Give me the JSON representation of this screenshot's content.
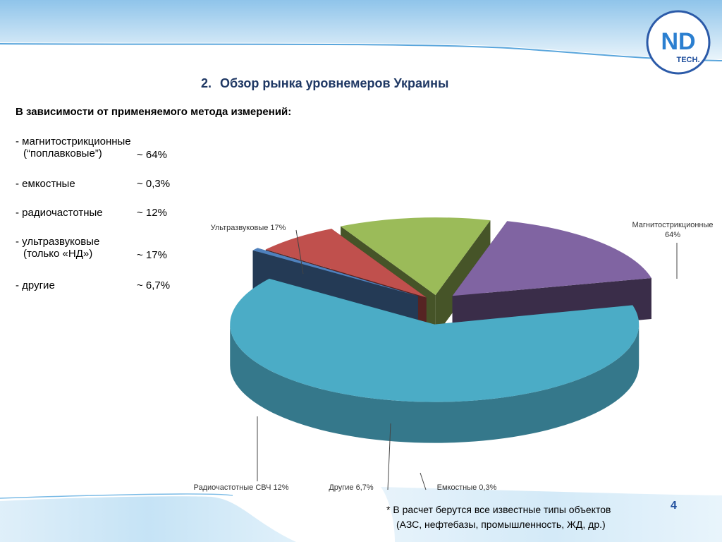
{
  "slide": {
    "title_number": "2.",
    "title": "Обзор рынка уровнемеров Украины",
    "subtitle": "В зависимости от применяемого метода измерений:",
    "page_number": "4",
    "footnote_line1": "* В расчет берутся все известные типы объектов",
    "footnote_line2": "(АЗС, нефтебазы, промышленность, ЖД, др.)"
  },
  "logo": {
    "main": "ND",
    "sub": "TECH."
  },
  "bullets": [
    {
      "label": "- магнитострикционные",
      "label2": "(“поплавковые”)",
      "value": "~ 64%"
    },
    {
      "label": "- емкостные",
      "label2": "",
      "value": "~ 0,3%"
    },
    {
      "label": "- радиочастотные",
      "label2": "",
      "value": "~ 12%"
    },
    {
      "label": "- ультразвуковые",
      "label2": "(только «НД»)",
      "value": "~ 17%"
    },
    {
      "label": "- другие",
      "label2": "",
      "value": "~ 6,7%"
    }
  ],
  "chart_data": {
    "type": "pie",
    "title": "",
    "style": "3d-exploded",
    "slices": [
      {
        "label": "Магнитострикционные",
        "value_label": "64%",
        "value": 64,
        "color": "#4bacc6"
      },
      {
        "label": "Емкостные",
        "value_label": "0,3%",
        "value": 0.3,
        "color": "#4f81bd"
      },
      {
        "label": "Другие",
        "value_label": "6,7%",
        "value": 6.7,
        "color": "#c0504d"
      },
      {
        "label": "Радиочастотные СВЧ",
        "value_label": "12%",
        "value": 12,
        "color": "#9bbb59"
      },
      {
        "label": "Ультразвуковые",
        "value_label": "17%",
        "value": 17,
        "color": "#8064a2"
      }
    ]
  }
}
